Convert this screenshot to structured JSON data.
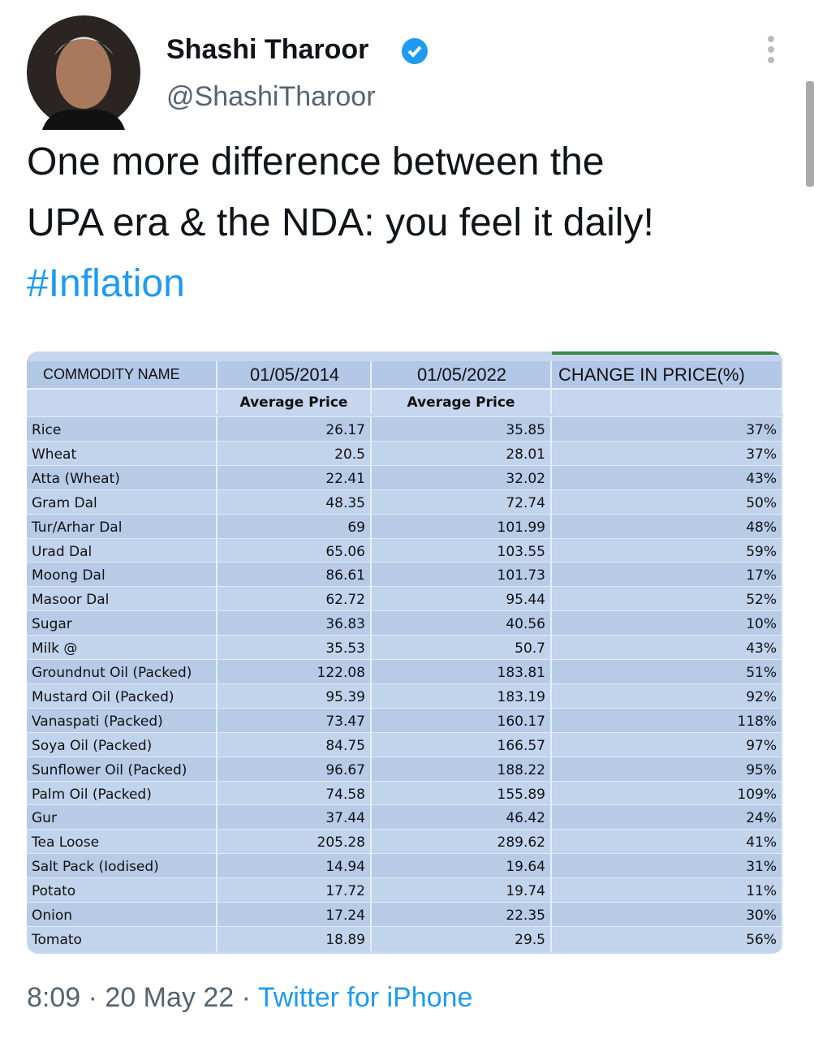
{
  "header": {
    "name": "Shashi Tharoor",
    "handle": "@ShashiTharoor"
  },
  "tweet": {
    "lines": [
      "One more difference between the",
      "UPA era & the NDA: you feel it daily!"
    ],
    "hashtag": "#Inflation"
  },
  "table": {
    "columns": [
      "COMMODITY NAME",
      "01/05/2014",
      "01/05/2022",
      "CHANGE IN PRICE(%)"
    ],
    "subheader": [
      "Average Price",
      "Average Price"
    ],
    "rows": [
      [
        "Rice",
        "26.17",
        "35.85",
        "37%"
      ],
      [
        "Wheat",
        "20.5",
        "28.01",
        "37%"
      ],
      [
        "Atta (Wheat)",
        "22.41",
        "32.02",
        "43%"
      ],
      [
        "Gram Dal",
        "48.35",
        "72.74",
        "50%"
      ],
      [
        "Tur/Arhar Dal",
        "69",
        "101.99",
        "48%"
      ],
      [
        "Urad Dal",
        "65.06",
        "103.55",
        "59%"
      ],
      [
        "Moong Dal",
        "86.61",
        "101.73",
        "17%"
      ],
      [
        "Masoor Dal",
        "62.72",
        "95.44",
        "52%"
      ],
      [
        "Sugar",
        "36.83",
        "40.56",
        "10%"
      ],
      [
        "Milk @",
        "35.53",
        "50.7",
        "43%"
      ],
      [
        "Groundnut Oil (Packed)",
        "122.08",
        "183.81",
        "51%"
      ],
      [
        "Mustard Oil (Packed)",
        "95.39",
        "183.19",
        "92%"
      ],
      [
        "Vanaspati (Packed)",
        "73.47",
        "160.17",
        "118%"
      ],
      [
        "Soya Oil (Packed)",
        "84.75",
        "166.57",
        "97%"
      ],
      [
        "Sunflower Oil (Packed)",
        "96.67",
        "188.22",
        "95%"
      ],
      [
        "Palm Oil (Packed)",
        "74.58",
        "155.89",
        "109%"
      ],
      [
        "Gur",
        "37.44",
        "46.42",
        "24%"
      ],
      [
        "Tea Loose",
        "205.28",
        "289.62",
        "41%"
      ],
      [
        "Salt Pack (Iodised)",
        "14.94",
        "19.64",
        "31%"
      ],
      [
        "Potato",
        "17.72",
        "19.74",
        "11%"
      ],
      [
        "Onion",
        "17.24",
        "22.35",
        "30%"
      ],
      [
        "Tomato",
        "18.89",
        "29.5",
        "56%"
      ]
    ]
  },
  "footer": {
    "time": "8:09",
    "separator": "·",
    "date": "20 May 22",
    "source": "Twitter for iPhone"
  }
}
